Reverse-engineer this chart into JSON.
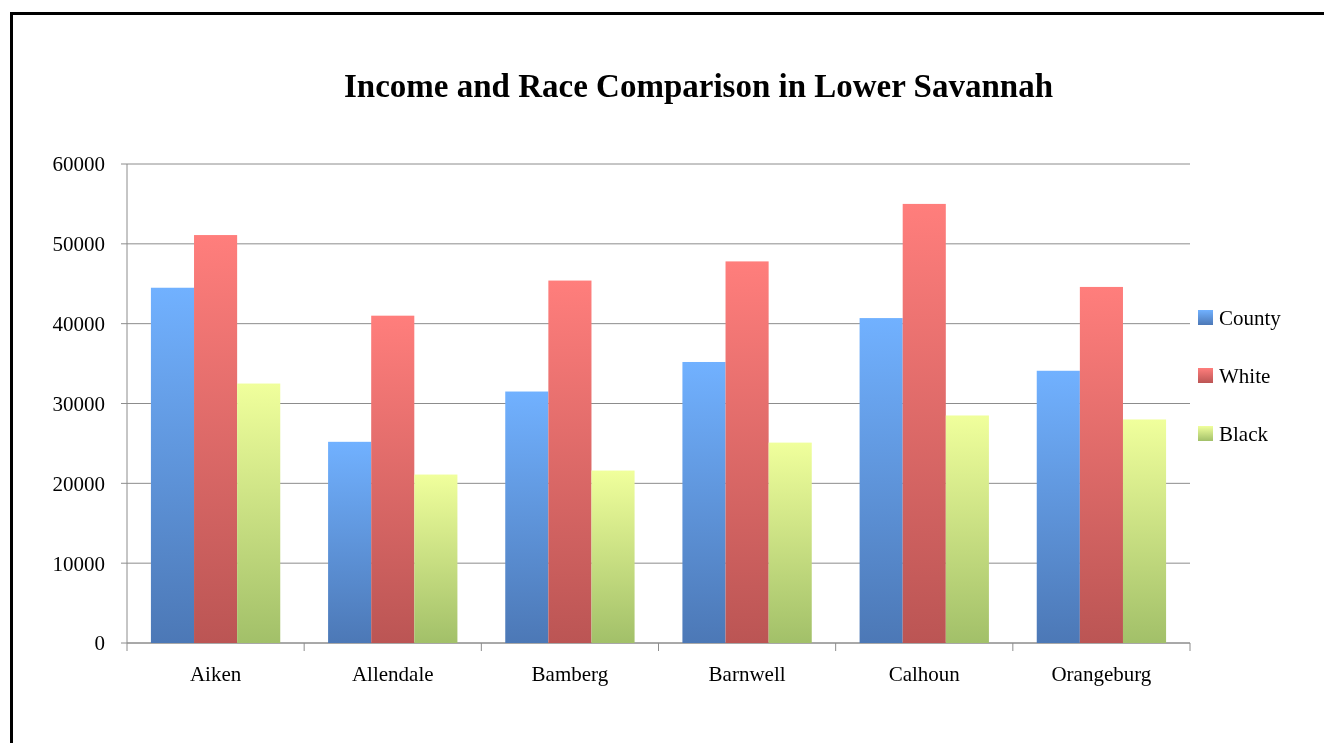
{
  "chart_data": {
    "type": "bar",
    "title": "Income and Race Comparison in Lower Savannah",
    "categories": [
      "Aiken",
      "Allendale",
      "Bamberg",
      "Barnwell",
      "Calhoun",
      "Orangeburg"
    ],
    "series": [
      {
        "name": "County",
        "color": "#5b8fd9",
        "values": [
          44500,
          25200,
          31500,
          35200,
          40700,
          34100
        ]
      },
      {
        "name": "White",
        "color": "#e06664",
        "values": [
          51100,
          41000,
          45400,
          47800,
          55000,
          44600
        ]
      },
      {
        "name": "Black",
        "color": "#c2e57e",
        "values": [
          32500,
          21100,
          21600,
          25100,
          28500,
          28000
        ]
      }
    ],
    "ylim": [
      0,
      60000
    ],
    "yticks": [
      0,
      10000,
      20000,
      30000,
      40000,
      50000,
      60000
    ],
    "grid": "y",
    "legend": "right"
  }
}
